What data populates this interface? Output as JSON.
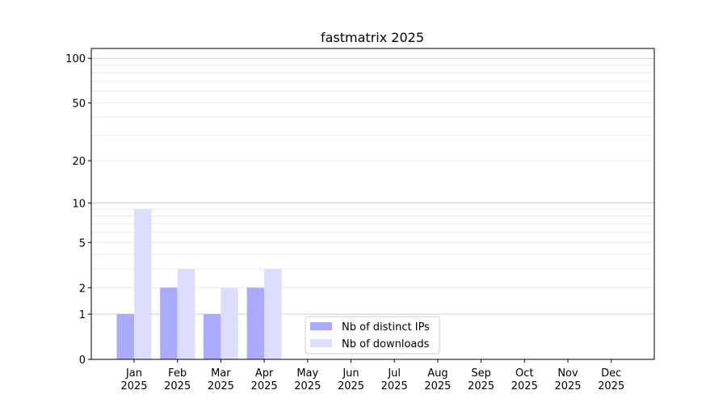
{
  "chart_data": {
    "type": "bar",
    "title": "fastmatrix 2025",
    "xlabel": "",
    "ylabel": "",
    "yscale": "log(1+y)",
    "ylim": [
      0,
      116
    ],
    "yticks": [
      0,
      1,
      2,
      5,
      10,
      20,
      50,
      100
    ],
    "grid": true,
    "legend_position": "lower-center",
    "categories": [
      "Jan\n2025",
      "Feb\n2025",
      "Mar\n2025",
      "Apr\n2025",
      "May\n2025",
      "Jun\n2025",
      "Jul\n2025",
      "Aug\n2025",
      "Sep\n2025",
      "Oct\n2025",
      "Nov\n2025",
      "Dec\n2025"
    ],
    "series": [
      {
        "name": "Nb of distinct IPs",
        "color": "#aaaaff",
        "values": [
          1,
          2,
          1,
          2,
          null,
          null,
          null,
          null,
          null,
          null,
          null,
          null
        ]
      },
      {
        "name": "Nb of downloads",
        "color": "#ddddff",
        "values": [
          9,
          3,
          2,
          3,
          null,
          null,
          null,
          null,
          null,
          null,
          null,
          null
        ]
      }
    ]
  }
}
